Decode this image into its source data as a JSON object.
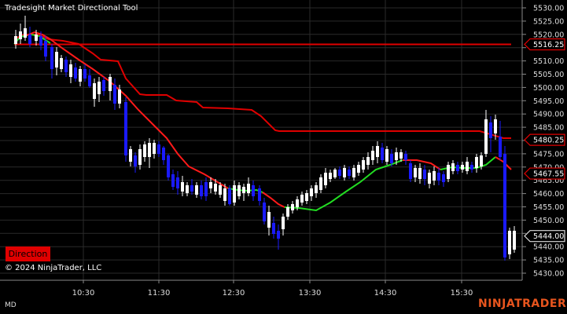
{
  "window": {
    "title": "Tradesight Market Directional Tool",
    "copyright": "© 2024 NinjaTrader, LLC",
    "mode": "MD",
    "brand": "NINJATRADER"
  },
  "controls": {
    "direction_label": "Direction"
  },
  "colors": {
    "background": "#000000",
    "bull_candle": "#ffffff",
    "bear_candle": "#1a1aff",
    "resistance_line": "#e00000",
    "signal_up": "#22dd22",
    "signal_down": "#ff1a1a",
    "price_marker_bg": "#000000"
  },
  "chart_data": {
    "type": "candlestick",
    "ylim": [
      5428,
      5532
    ],
    "y_ticks": [
      "5530.00",
      "5525.00",
      "5520.00",
      "5515.00",
      "5510.00",
      "5505.00",
      "5500.00",
      "5495.00",
      "5490.00",
      "5485.00",
      "5480.00",
      "5475.00",
      "5470.00",
      "5465.00",
      "5460.00",
      "5455.00",
      "5450.00",
      "5445.00",
      "5440.00",
      "5435.00",
      "5430.00"
    ],
    "x_ticks": [
      "10:30",
      "11:30",
      "12:30",
      "13:30",
      "14:30",
      "15:30"
    ],
    "price_markers": [
      {
        "label": "5516.25",
        "style": "red"
      },
      {
        "label": "5480.25",
        "style": "red"
      },
      {
        "label": "5467.55",
        "style": "red"
      },
      {
        "label": "5444.00",
        "style": "plain"
      }
    ]
  }
}
